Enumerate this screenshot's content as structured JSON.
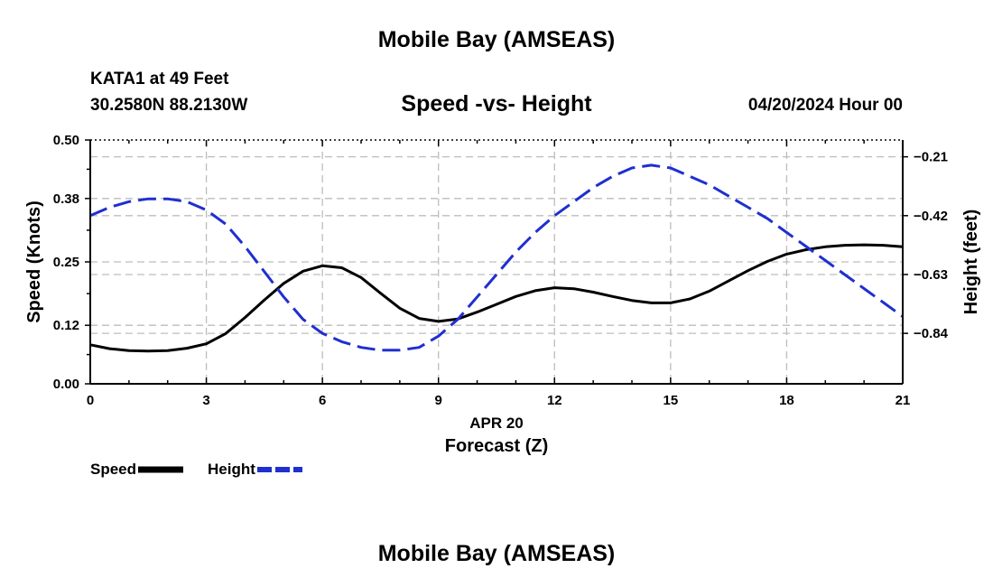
{
  "header": {
    "title": "Mobile Bay (AMSEAS)",
    "station": "KATA1 at 49 Feet",
    "coords": "30.2580N  88.2130W",
    "subtitle": "Speed -vs- Height",
    "datetime": "04/20/2024 Hour 00"
  },
  "footer": {
    "title": "Mobile Bay (AMSEAS)"
  },
  "legend": {
    "speed_label": "Speed",
    "height_label": "Height"
  },
  "chart_data": {
    "type": "line",
    "title": "Speed -vs- Height",
    "xlabel": "Forecast (Z)",
    "xsublabel": "APR 20",
    "ylabel": "Speed (Knots)",
    "y2label": "Height (feet)",
    "xlim": [
      0,
      21
    ],
    "ylim": [
      0,
      0.5
    ],
    "y2lim": [
      -1.02,
      -0.15
    ],
    "xticks": [
      0,
      3,
      6,
      9,
      12,
      15,
      18,
      21
    ],
    "yticks": [
      0,
      0.12,
      0.25,
      0.38,
      0.5
    ],
    "ytick_labels": [
      "0.00",
      "0.12",
      "0.25",
      "0.38",
      "0.50"
    ],
    "y2ticks": [
      -0.84,
      -0.63,
      -0.42,
      -0.21
    ],
    "y2tick_labels": [
      "−0.84",
      "−0.63",
      "−0.42",
      "−0.21"
    ],
    "grid": true,
    "legend_position": "bottom-left",
    "series": [
      {
        "name": "Speed",
        "axis": "left",
        "color": "#000000",
        "style": "solid",
        "x": [
          0,
          0.5,
          1,
          1.5,
          2,
          2.5,
          3,
          3.5,
          4,
          4.5,
          5,
          5.5,
          6,
          6.5,
          7,
          7.5,
          8,
          8.5,
          9,
          9.5,
          10,
          10.5,
          11,
          11.5,
          12,
          12.5,
          13,
          13.5,
          14,
          14.5,
          15,
          15.5,
          16,
          16.5,
          17,
          17.5,
          18,
          18.5,
          19,
          19.5,
          20,
          20.5,
          21
        ],
        "values": [
          0.08,
          0.072,
          0.068,
          0.067,
          0.068,
          0.073,
          0.082,
          0.103,
          0.136,
          0.172,
          0.206,
          0.231,
          0.242,
          0.238,
          0.218,
          0.186,
          0.155,
          0.134,
          0.128,
          0.133,
          0.147,
          0.163,
          0.179,
          0.191,
          0.197,
          0.195,
          0.188,
          0.179,
          0.171,
          0.166,
          0.166,
          0.174,
          0.19,
          0.211,
          0.232,
          0.251,
          0.266,
          0.275,
          0.281,
          0.284,
          0.285,
          0.284,
          0.281
        ]
      },
      {
        "name": "Height",
        "axis": "right",
        "color": "#1f2fd0",
        "style": "dashed",
        "x": [
          0,
          0.5,
          1,
          1.5,
          2,
          2.5,
          3,
          3.5,
          4,
          4.5,
          5,
          5.5,
          6,
          6.5,
          7,
          7.5,
          8,
          8.5,
          9,
          9.5,
          10,
          10.5,
          11,
          11.5,
          12,
          12.5,
          13,
          13.5,
          14,
          14.5,
          15,
          15.5,
          16,
          16.5,
          17,
          17.5,
          18,
          18.5,
          19,
          19.5,
          20,
          20.5,
          21
        ],
        "values": [
          -0.42,
          -0.39,
          -0.37,
          -0.36,
          -0.36,
          -0.37,
          -0.4,
          -0.45,
          -0.53,
          -0.62,
          -0.71,
          -0.79,
          -0.84,
          -0.87,
          -0.89,
          -0.9,
          -0.9,
          -0.89,
          -0.85,
          -0.79,
          -0.71,
          -0.63,
          -0.55,
          -0.48,
          -0.42,
          -0.37,
          -0.32,
          -0.28,
          -0.25,
          -0.24,
          -0.25,
          -0.28,
          -0.31,
          -0.35,
          -0.39,
          -0.43,
          -0.48,
          -0.53,
          -0.58,
          -0.63,
          -0.68,
          -0.73,
          -0.78
        ]
      }
    ]
  }
}
